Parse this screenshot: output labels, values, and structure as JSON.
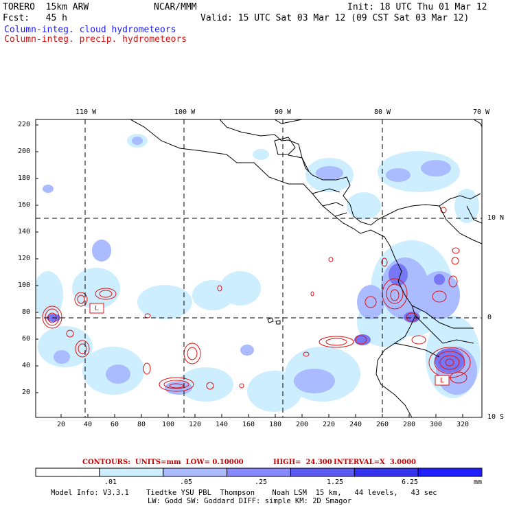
{
  "header": {
    "model_name": "TORERO  15km ARW",
    "center": "NCAR/MMM",
    "init": "Init: 18 UTC Thu 01 Mar 12",
    "forecast": "Fcst:   45 h",
    "valid": "Valid: 15 UTC Sat 03 Mar 12 (09 CST Sat 03 Mar 12)",
    "field_cloud": "Column-integ. cloud hydrometeors",
    "field_precip": "Column-integ. precip. hydrometeors"
  },
  "map": {
    "lon_labels": [
      "110 W",
      "100 W",
      "90 W",
      "80 W",
      "70 W"
    ],
    "lat_labels": [
      "10 N",
      "0",
      "10 S"
    ],
    "y_ticks": [
      "220",
      "200",
      "180",
      "160",
      "140",
      "120",
      "100",
      "80",
      "60",
      "40",
      "20"
    ],
    "x_ticks": [
      "20",
      "40",
      "60",
      "80",
      "100",
      "120",
      "140",
      "160",
      "180",
      "200",
      "220",
      "240",
      "260",
      "280",
      "300",
      "320"
    ],
    "box_labels": [
      "L",
      "L"
    ]
  },
  "contour_info": {
    "units_label": "CONTOURS:  UNITS=mm  LOW= 0.10000",
    "high_label": "HIGH=  24.300",
    "interval_label": "INTERVAL=X  3.0000"
  },
  "colorbar": {
    "labels": [
      ".01",
      ".05",
      ".25",
      "1.25",
      "6.25"
    ],
    "unit": "mm",
    "colors": [
      "#ffffff",
      "#cceeff",
      "#aabbff",
      "#8888ff",
      "#5c5cf5",
      "#3333ee",
      "#1f1fff"
    ]
  },
  "footer": {
    "line1": "Model Info: V3.3.1    Tiedtke YSU PBL  Thompson    Noah LSM  15 km,   44 levels,   43 sec",
    "line2": "LW: Godd SW: Goddard DIFF: simple KM: 2D Smagor"
  },
  "colors": {
    "cloud_label": "#1a1aff",
    "precip_label": "#e01010",
    "contour": "#e01010",
    "coast": "#000000"
  }
}
